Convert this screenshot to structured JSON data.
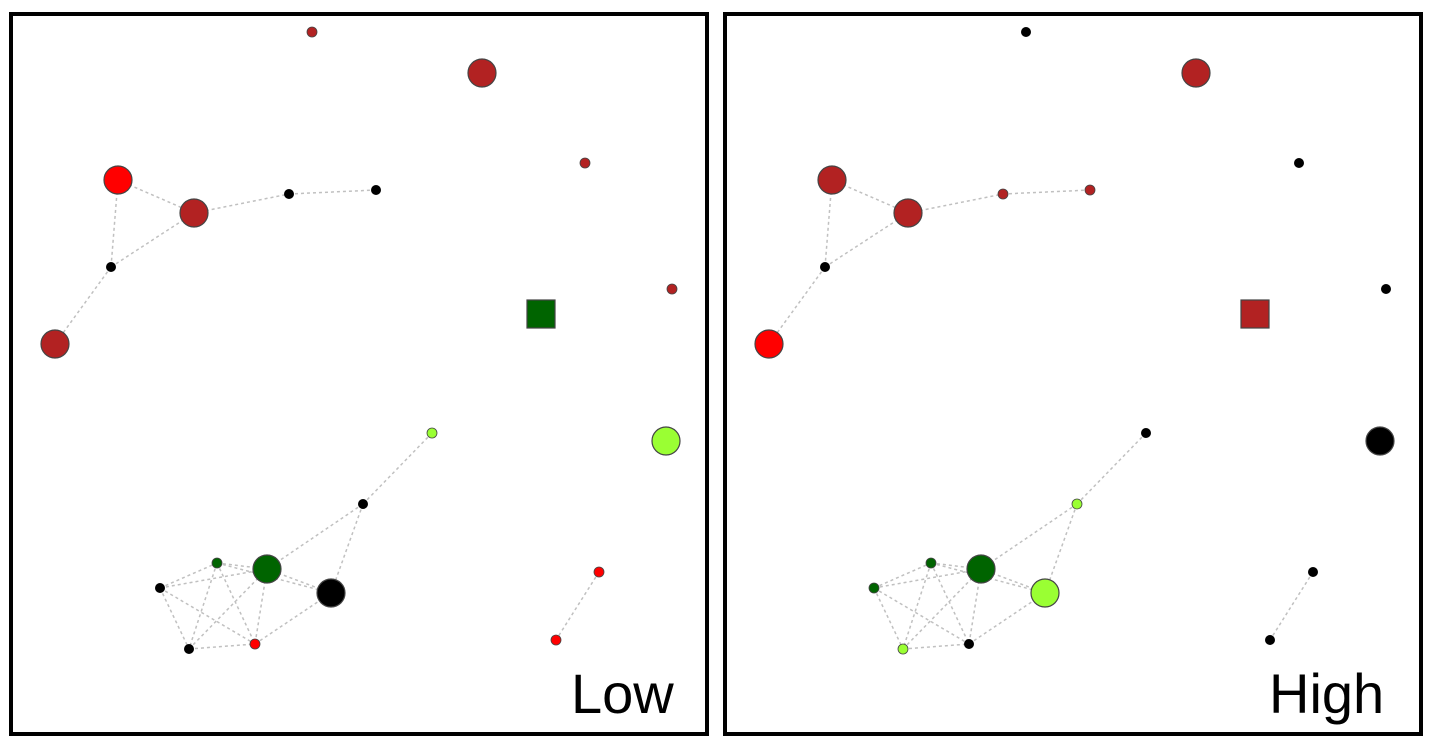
{
  "legend_colors": {
    "black": "#000000",
    "dark-red": "#b22222",
    "red": "#ff0000",
    "dark-green": "#006400",
    "light-green": "#9aff33",
    "edge": "#c0c0c0"
  },
  "panels": [
    {
      "label": "Low",
      "node_colors": {
        "n0": "dark-red",
        "n1": "dark-red",
        "n2": "dark-red",
        "n3": "red",
        "n4": "dark-red",
        "n5": "black",
        "n6": "black",
        "n7": "black",
        "n8": "dark-red",
        "n9": "dark-green",
        "n10": "dark-red",
        "n11": "light-green",
        "n12": "light-green",
        "n13": "black",
        "n14": "dark-green",
        "n15": "black",
        "n16": "dark-green",
        "n17": "black",
        "n18": "black",
        "n19": "red",
        "n20": "red"
      }
    },
    {
      "label": "High",
      "node_colors": {
        "n0": "black",
        "n1": "dark-red",
        "n2": "black",
        "n3": "dark-red",
        "n4": "dark-red",
        "n5": "dark-red",
        "n6": "dark-red",
        "n7": "black",
        "n8": "black",
        "n9": "dark-red",
        "n10": "red",
        "n11": "black",
        "n12": "black",
        "n13": "light-green",
        "n14": "dark-green",
        "n15": "dark-green",
        "n16": "dark-green",
        "n17": "light-green",
        "n18": "light-green",
        "n19": "black",
        "n20": "black"
      }
    }
  ]
}
